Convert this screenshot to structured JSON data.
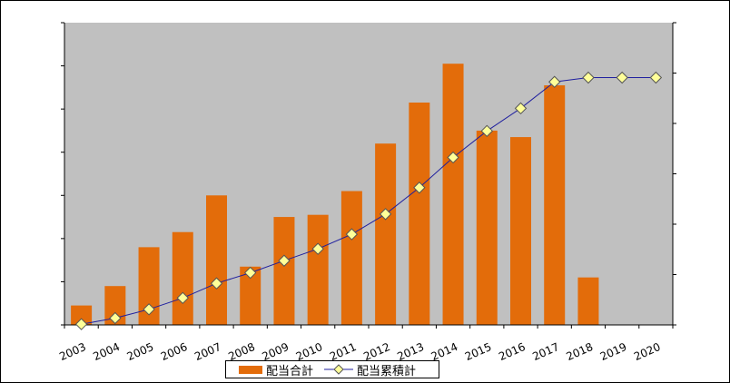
{
  "chart_data": {
    "type": "bar",
    "categories": [
      "2003",
      "2004",
      "2005",
      "2006",
      "2007",
      "2008",
      "2009",
      "2010",
      "2011",
      "2012",
      "2013",
      "2014",
      "2015",
      "2016",
      "2017",
      "2018",
      "2019",
      "2020"
    ],
    "series": [
      {
        "name": "配当合計",
        "type": "bar",
        "color": "#E36C0A",
        "values": [
          0.45,
          0.9,
          1.8,
          2.15,
          3.0,
          1.35,
          2.5,
          2.55,
          3.1,
          4.2,
          5.15,
          6.05,
          4.5,
          4.35,
          5.55,
          1.1,
          null,
          null
        ]
      },
      {
        "name": "配当累積計",
        "type": "line",
        "color": "#1F1F9F",
        "marker_color": "#FFFF99",
        "values": [
          0.03,
          0.27,
          0.62,
          1.07,
          1.65,
          2.07,
          2.55,
          3.02,
          3.6,
          4.4,
          5.45,
          6.65,
          7.7,
          8.6,
          9.65,
          9.82,
          9.82,
          9.82
        ]
      }
    ],
    "ylim_primary": [
      0,
      7
    ],
    "ylim_secondary": [
      0,
      12
    ],
    "grid": false,
    "plot_background": "#C0C0C0",
    "legend_position": "bottom",
    "title": "",
    "xlabel": "",
    "ylabel": ""
  },
  "legend": {
    "bar_label": "配当合計",
    "line_label": "配当累積計"
  }
}
